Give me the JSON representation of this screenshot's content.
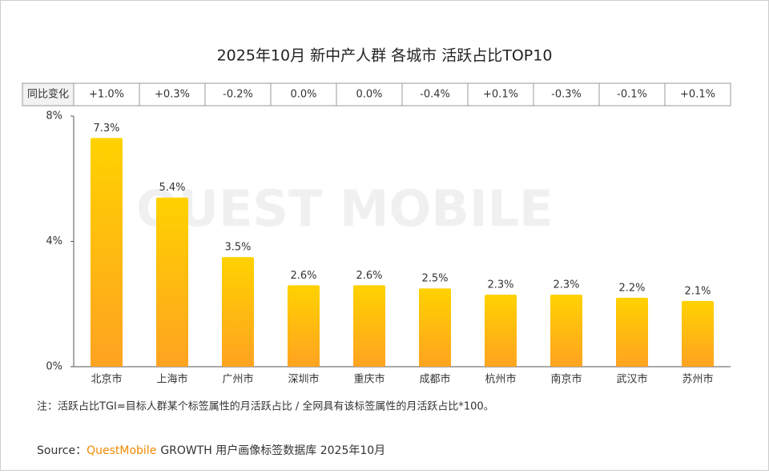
{
  "chart_data": {
    "type": "bar",
    "title": "2025年10月 新中产人群 各城市 活跃占比TOP10",
    "categories": [
      "北京市",
      "上海市",
      "广州市",
      "深圳市",
      "重庆市",
      "成都市",
      "杭州市",
      "南京市",
      "武汉市",
      "苏州市"
    ],
    "values": [
      7.3,
      5.4,
      3.5,
      2.6,
      2.6,
      2.5,
      2.3,
      2.3,
      2.2,
      2.1
    ],
    "value_labels": [
      "7.3%",
      "5.4%",
      "3.5%",
      "2.6%",
      "2.6%",
      "2.5%",
      "2.3%",
      "2.3%",
      "2.2%",
      "2.1%"
    ],
    "colors": [
      "#FFD200",
      "#FFA321"
    ],
    "ylim": [
      0,
      8
    ],
    "yticks": [
      {
        "value": 0,
        "label": "0%"
      },
      {
        "value": 4,
        "label": "4%"
      },
      {
        "value": 8,
        "label": "8%"
      }
    ],
    "yoy": {
      "label": "同比变化",
      "values": [
        1.0,
        0.3,
        -0.2,
        0.0,
        0.0,
        -0.4,
        0.1,
        -0.3,
        -0.1,
        0.1
      ],
      "value_labels": [
        "+1.0%",
        "+0.3%",
        "-0.2%",
        "0.0%",
        "0.0%",
        "-0.4%",
        "+0.1%",
        "-0.3%",
        "-0.1%",
        "+0.1%"
      ]
    },
    "watermark": "QUEST MOBILE",
    "note": "注：活跃占比TGI=目标人群某个标签属性的月活跃占比 / 全网具有该标签属性的月活跃占比*100。",
    "source": {
      "label": "Source：",
      "brand": "QuestMobile",
      "text": "GROWTH 用户画像标签数据库 2025年10月"
    }
  }
}
